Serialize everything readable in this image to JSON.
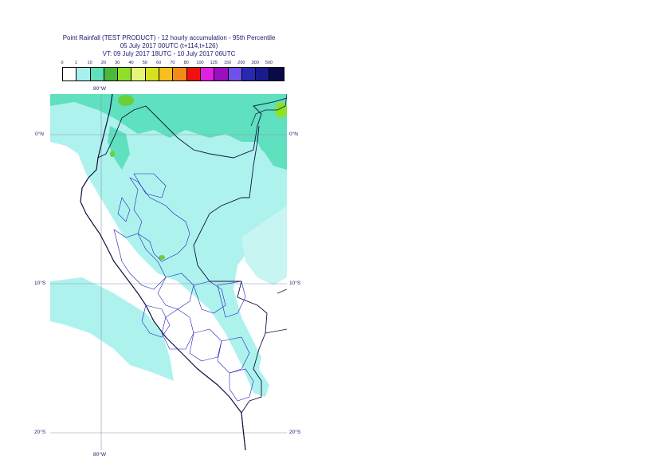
{
  "title": {
    "line1": "Point Rainfall (TEST PRODUCT) - 12 hourly accumulation - 95th Percentile",
    "line2": "05 July 2017 00UTC (t+114,t+126)",
    "line3": "VT: 09 July 2017 18UTC - 10 July 2017 06UTC"
  },
  "legend": {
    "thresholds": [
      "0",
      "1",
      "10",
      "20",
      "30",
      "40",
      "50",
      "60",
      "70",
      "80",
      "100",
      "125",
      "150",
      "200",
      "300",
      "500"
    ],
    "colors": [
      "#ffffff",
      "#a8f0ee",
      "#5ee0b8",
      "#4cb83a",
      "#8ee02a",
      "#e6f57a",
      "#d8e020",
      "#f5c020",
      "#f58a1a",
      "#f01010",
      "#e020e0",
      "#9a10c0",
      "#7050e8",
      "#2828b0",
      "#1a1a90",
      "#0a0a48"
    ]
  },
  "map": {
    "lon_label_top": "80°W",
    "lon_label_bottom": "80°W",
    "lat_labels_left": [
      "0°N",
      "10°S",
      "20°S"
    ],
    "lat_labels_right": [
      "0°N",
      "10°S",
      "20°S"
    ]
  }
}
